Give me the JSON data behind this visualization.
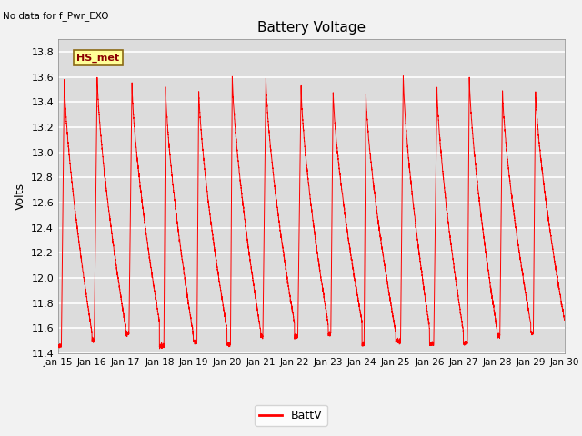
{
  "title": "Battery Voltage",
  "ylabel": "Volts",
  "top_left_text": "No data for f_Pwr_EXO",
  "legend_label": "BattV",
  "line_color": "#FF0000",
  "background_color": "#DCDCDC",
  "ylim": [
    11.4,
    13.9
  ],
  "yticks": [
    11.4,
    11.6,
    11.8,
    12.0,
    12.2,
    12.4,
    12.6,
    12.8,
    13.0,
    13.2,
    13.4,
    13.6,
    13.8
  ],
  "xlim_days": 15,
  "xtick_labels": [
    "Jan 15",
    "Jan 16",
    "Jan 17",
    "Jan 18",
    "Jan 19",
    "Jan 20",
    "Jan 21",
    "Jan 22",
    "Jan 23",
    "Jan 24",
    "Jan 25",
    "Jan 26",
    "Jan 27",
    "Jan 28",
    "Jan 29",
    "Jan 30"
  ],
  "label_box_text": "HS_met",
  "label_box_facecolor": "#FFFF99",
  "label_box_edgecolor": "#8B6914",
  "fig_facecolor": "#F2F2F2"
}
